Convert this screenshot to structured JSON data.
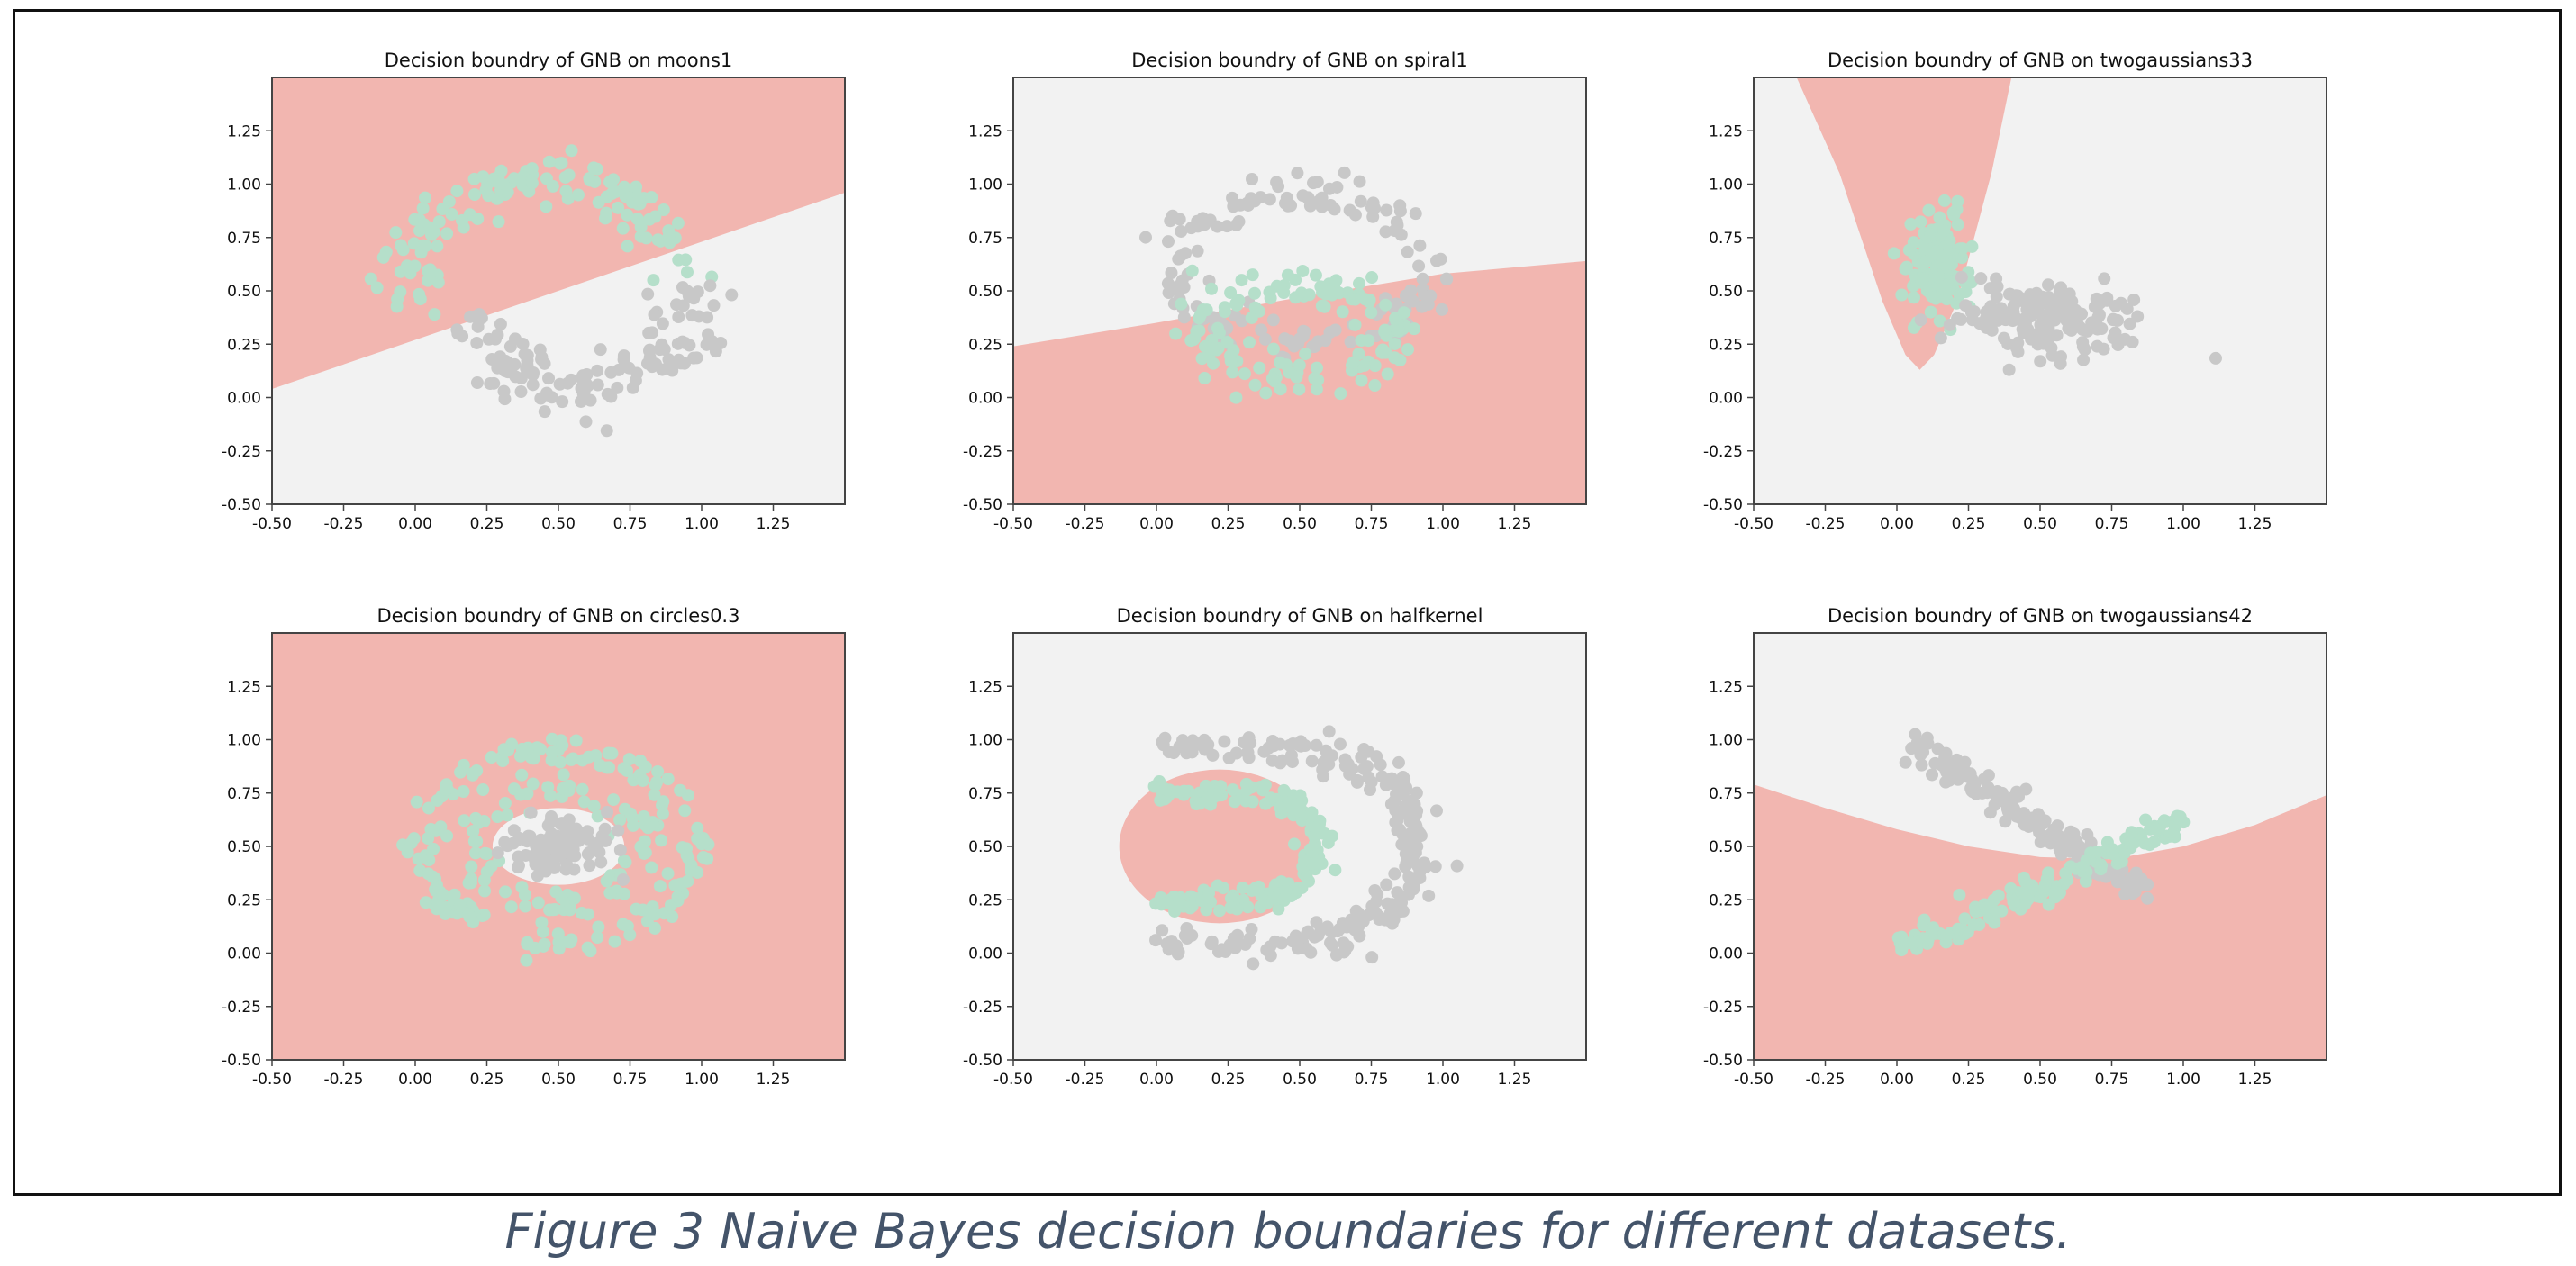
{
  "caption": "Figure 3 Naive Bayes decision boundaries for different datasets.",
  "colors": {
    "region_class0": "#f2f2f2",
    "region_class1": "#f2b6b0",
    "points_class0": "#c8c8c8",
    "points_class1": "#b5dfca",
    "axis": "#444444",
    "text": "#111111"
  },
  "chart_data": [
    {
      "type": "scatter",
      "title": "Decision boundry of GNB on moons1",
      "xlim": [
        -0.5,
        1.5
      ],
      "ylim": [
        -0.5,
        1.5
      ],
      "xticks": [
        "-0.50",
        "-0.25",
        "0.00",
        "0.25",
        "0.50",
        "0.75",
        "1.00",
        "1.25"
      ],
      "yticks": [
        "-0.50",
        "-0.25",
        "0.00",
        "0.25",
        "0.50",
        "0.75",
        "1.00",
        "1.25"
      ],
      "background": "class0",
      "regions": [
        {
          "class": "class1",
          "polygon": [
            [
              -0.5,
              0.04
            ],
            [
              1.5,
              0.96
            ],
            [
              1.5,
              1.5
            ],
            [
              -0.5,
              1.5
            ]
          ]
        }
      ],
      "series": [
        {
          "class": "class1",
          "shape": "arc",
          "cx": 0.45,
          "cy": 0.55,
          "r": 0.47,
          "a0": 10,
          "a1": 190,
          "spread": 0.06,
          "n": 130
        },
        {
          "class": "class0",
          "shape": "arc",
          "cx": 0.58,
          "cy": 0.43,
          "r": 0.38,
          "a0": 190,
          "a1": 370,
          "spread": 0.06,
          "n": 130
        }
      ]
    },
    {
      "type": "scatter",
      "title": "Decision boundry of GNB on spiral1",
      "xlim": [
        -0.5,
        1.5
      ],
      "ylim": [
        -0.5,
        1.5
      ],
      "xticks": [
        "-0.50",
        "-0.25",
        "0.00",
        "0.25",
        "0.50",
        "0.75",
        "1.00",
        "1.25"
      ],
      "yticks": [
        "-0.50",
        "-0.25",
        "0.00",
        "0.25",
        "0.50",
        "0.75",
        "1.00",
        "1.25"
      ],
      "background": "class0",
      "regions": [
        {
          "class": "class1",
          "polygon": [
            [
              -0.5,
              -0.5
            ],
            [
              -0.5,
              0.24
            ],
            [
              0.0,
              0.35
            ],
            [
              0.5,
              0.47
            ],
            [
              1.0,
              0.58
            ],
            [
              1.5,
              0.64
            ],
            [
              1.5,
              -0.5
            ]
          ]
        }
      ],
      "series": [
        {
          "class": "class0",
          "shape": "ellipse",
          "cx": 0.5,
          "cy": 0.6,
          "rx": 0.45,
          "ry": 0.35,
          "spread": 0.05,
          "n": 150
        },
        {
          "class": "class1",
          "shape": "ellipse",
          "cx": 0.5,
          "cy": 0.3,
          "rx": 0.33,
          "ry": 0.22,
          "spread": 0.05,
          "n": 140
        }
      ]
    },
    {
      "type": "scatter",
      "title": "Decision boundry of GNB on twogaussians33",
      "xlim": [
        -0.5,
        1.5
      ],
      "ylim": [
        -0.5,
        1.5
      ],
      "xticks": [
        "-0.50",
        "-0.25",
        "0.00",
        "0.25",
        "0.50",
        "0.75",
        "1.00",
        "1.25"
      ],
      "yticks": [
        "-0.50",
        "-0.25",
        "0.00",
        "0.25",
        "0.50",
        "0.75",
        "1.00",
        "1.25"
      ],
      "background": "class0",
      "regions": [
        {
          "class": "class1",
          "polygon": [
            [
              -0.35,
              1.5
            ],
            [
              -0.2,
              1.05
            ],
            [
              -0.05,
              0.45
            ],
            [
              0.03,
              0.2
            ],
            [
              0.08,
              0.13
            ],
            [
              0.13,
              0.2
            ],
            [
              0.21,
              0.45
            ],
            [
              0.33,
              1.05
            ],
            [
              0.4,
              1.5
            ]
          ]
        }
      ],
      "series": [
        {
          "class": "class1",
          "shape": "blob",
          "cx": 0.14,
          "cy": 0.63,
          "sx": 0.05,
          "sy": 0.13,
          "n": 140
        },
        {
          "class": "class0",
          "shape": "blob",
          "cx": 0.53,
          "cy": 0.38,
          "sx": 0.17,
          "sy": 0.08,
          "n": 180
        }
      ]
    },
    {
      "type": "scatter",
      "title": "Decision boundry of GNB on circles0.3",
      "xlim": [
        -0.5,
        1.5
      ],
      "ylim": [
        -0.5,
        1.5
      ],
      "xticks": [
        "-0.50",
        "-0.25",
        "0.00",
        "0.25",
        "0.50",
        "0.75",
        "1.00",
        "1.25"
      ],
      "yticks": [
        "-0.50",
        "-0.25",
        "0.00",
        "0.25",
        "0.50",
        "0.75",
        "1.00",
        "1.25"
      ],
      "background": "class1",
      "regions": [
        {
          "class": "class0",
          "ellipse": [
            0.5,
            0.5,
            0.23,
            0.18
          ]
        }
      ],
      "series": [
        {
          "class": "class1",
          "shape": "ellipse",
          "cx": 0.5,
          "cy": 0.5,
          "rx": 0.47,
          "ry": 0.45,
          "spread": 0.04,
          "n": 170
        },
        {
          "class": "class1",
          "shape": "ellipse",
          "cx": 0.5,
          "cy": 0.5,
          "rx": 0.3,
          "ry": 0.27,
          "spread": 0.04,
          "n": 90
        },
        {
          "class": "class0",
          "shape": "blob",
          "cx": 0.5,
          "cy": 0.5,
          "sx": 0.09,
          "sy": 0.07,
          "n": 110
        }
      ]
    },
    {
      "type": "scatter",
      "title": "Decision boundry of GNB on halfkernel",
      "xlim": [
        -0.5,
        1.5
      ],
      "ylim": [
        -0.5,
        1.5
      ],
      "xticks": [
        "-0.50",
        "-0.25",
        "0.00",
        "0.25",
        "0.50",
        "0.75",
        "1.00",
        "1.25"
      ],
      "yticks": [
        "-0.50",
        "-0.25",
        "0.00",
        "0.25",
        "0.50",
        "0.75",
        "1.00",
        "1.25"
      ],
      "background": "class0",
      "regions": [
        {
          "class": "class1",
          "ellipse": [
            0.22,
            0.5,
            0.35,
            0.36
          ]
        }
      ],
      "series": [
        {
          "class": "class0",
          "shape": "arc",
          "cx": 0.45,
          "cy": 0.5,
          "r": 0.46,
          "a0": -90,
          "a1": 90,
          "spread": 0.04,
          "n": 170
        },
        {
          "class": "class0",
          "shape": "hline",
          "x0": 0.0,
          "x1": 0.45,
          "y": 0.96,
          "spread": 0.03,
          "n": 35
        },
        {
          "class": "class0",
          "shape": "hline",
          "x0": 0.0,
          "x1": 0.45,
          "y": 0.04,
          "spread": 0.03,
          "n": 35
        },
        {
          "class": "class1",
          "shape": "arc",
          "cx": 0.32,
          "cy": 0.5,
          "r": 0.25,
          "a0": -90,
          "a1": 90,
          "spread": 0.03,
          "n": 90
        },
        {
          "class": "class1",
          "shape": "hline",
          "x0": 0.0,
          "x1": 0.32,
          "y": 0.75,
          "spread": 0.03,
          "n": 35
        },
        {
          "class": "class1",
          "shape": "hline",
          "x0": 0.0,
          "x1": 0.32,
          "y": 0.25,
          "spread": 0.03,
          "n": 35
        }
      ]
    },
    {
      "type": "scatter",
      "title": "Decision boundry of GNB on twogaussians42",
      "xlim": [
        -0.5,
        1.5
      ],
      "ylim": [
        -0.5,
        1.5
      ],
      "xticks": [
        "-0.50",
        "-0.25",
        "0.00",
        "0.25",
        "0.50",
        "0.75",
        "1.00",
        "1.25"
      ],
      "yticks": [
        "-0.50",
        "-0.25",
        "0.00",
        "0.25",
        "0.50",
        "0.75",
        "1.00",
        "1.25"
      ],
      "background": "class0",
      "regions": [
        {
          "class": "class1",
          "polygon": [
            [
              -0.5,
              -0.5
            ],
            [
              -0.5,
              0.79
            ],
            [
              -0.25,
              0.68
            ],
            [
              0.0,
              0.58
            ],
            [
              0.25,
              0.5
            ],
            [
              0.5,
              0.45
            ],
            [
              0.75,
              0.44
            ],
            [
              1.0,
              0.5
            ],
            [
              1.25,
              0.6
            ],
            [
              1.5,
              0.74
            ],
            [
              1.5,
              -0.5
            ]
          ]
        }
      ],
      "series": [
        {
          "class": "class0",
          "shape": "line",
          "x0": 0.05,
          "y0": 0.98,
          "x1": 0.85,
          "y1": 0.3,
          "spread": 0.04,
          "n": 150
        },
        {
          "class": "class1",
          "shape": "line",
          "x0": 0.0,
          "y0": 0.01,
          "x1": 1.0,
          "y1": 0.62,
          "spread": 0.035,
          "n": 150
        }
      ]
    }
  ]
}
